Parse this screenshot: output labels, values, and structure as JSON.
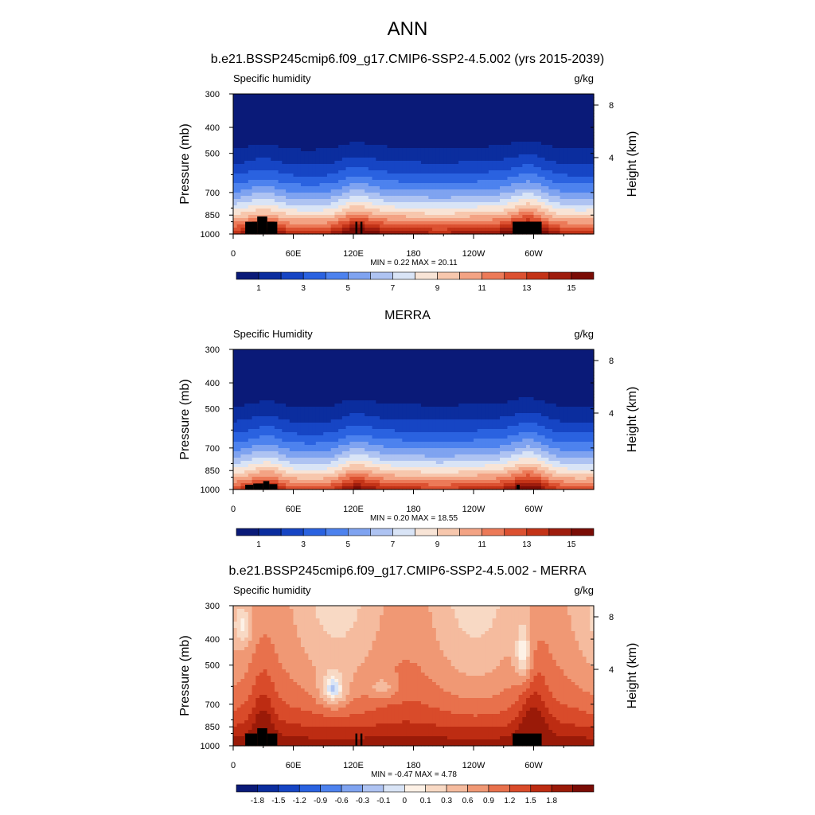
{
  "figure": {
    "title": "ANN"
  },
  "colors": {
    "abs_palette": [
      "#0a1a78",
      "#0b2d9e",
      "#1645c4",
      "#2a62e0",
      "#4d82ee",
      "#7fa3f0",
      "#aec3f2",
      "#d9e4f6",
      "#f8e4d6",
      "#f7c7ad",
      "#f3a384",
      "#ec7a58",
      "#dc5131",
      "#c33317",
      "#9e1c0d",
      "#7a0c05"
    ],
    "diff_palette": [
      "#0a1a78",
      "#0b2d9e",
      "#1645c4",
      "#2a62e0",
      "#4d82ee",
      "#7fa3f0",
      "#aec3f2",
      "#d9e4f6",
      "#fdf1e6",
      "#f8d9c4",
      "#f5bb9e",
      "#f09874",
      "#e8714c",
      "#d94b2a",
      "#bd2c12",
      "#9a1a08",
      "#7a0c05"
    ]
  },
  "chart_data": [
    {
      "type": "heatmap",
      "title": "b.e21.BSSP245cmip6.f09_g17.CMIP6-SSP2-4.5.002 (yrs 2015-2039)",
      "left_label": "Specific humidity",
      "units": "g/kg",
      "ylabel": "Pressure (mb)",
      "ylabel_right": "Height (km)",
      "x_ticks": [
        "0",
        "60E",
        "120E",
        "180",
        "120W",
        "60W"
      ],
      "y_ticks": [
        "300",
        "400",
        "500",
        "700",
        "850",
        "1000"
      ],
      "right_ticks": [
        "8",
        "4"
      ],
      "xlim": [
        0,
        360
      ],
      "ylim": [
        1000,
        300
      ],
      "stats": "MIN =   0.22  MAX =  20.11",
      "colorbar_labels": [
        "1",
        "3",
        "5",
        "7",
        "9",
        "11",
        "13",
        "15"
      ],
      "field_kind": "model"
    },
    {
      "type": "heatmap",
      "title": "MERRA",
      "left_label": "Specific Humidity",
      "units": "g/kg",
      "ylabel": "Pressure (mb)",
      "ylabel_right": "Height (km)",
      "x_ticks": [
        "0",
        "60E",
        "120E",
        "180",
        "120W",
        "60W"
      ],
      "y_ticks": [
        "300",
        "400",
        "500",
        "700",
        "850",
        "1000"
      ],
      "right_ticks": [
        "8",
        "4"
      ],
      "xlim": [
        0,
        360
      ],
      "ylim": [
        1000,
        300
      ],
      "stats": "MIN =   0.20  MAX =  18.55",
      "colorbar_labels": [
        "1",
        "3",
        "5",
        "7",
        "9",
        "11",
        "13",
        "15"
      ],
      "field_kind": "obs"
    },
    {
      "type": "heatmap",
      "title": "b.e21.BSSP245cmip6.f09_g17.CMIP6-SSP2-4.5.002 - MERRA",
      "left_label": "Specific humidity",
      "units": "g/kg",
      "ylabel": "Pressure (mb)",
      "ylabel_right": "Height (km)",
      "x_ticks": [
        "0",
        "60E",
        "120E",
        "180",
        "120W",
        "60W"
      ],
      "y_ticks": [
        "300",
        "400",
        "500",
        "700",
        "850",
        "1000"
      ],
      "right_ticks": [
        "8",
        "4"
      ],
      "xlim": [
        0,
        360
      ],
      "ylim": [
        1000,
        300
      ],
      "stats": "MIN =  -0.47  MAX =   4.78",
      "colorbar_labels": [
        "-1.8",
        "-1.5",
        "-1.2",
        "-0.9",
        "-0.6",
        "-0.3",
        "-0.1",
        "0",
        "0.1",
        "0.3",
        "0.6",
        "0.9",
        "1.2",
        "1.5",
        "1.8"
      ],
      "field_kind": "diff"
    }
  ]
}
